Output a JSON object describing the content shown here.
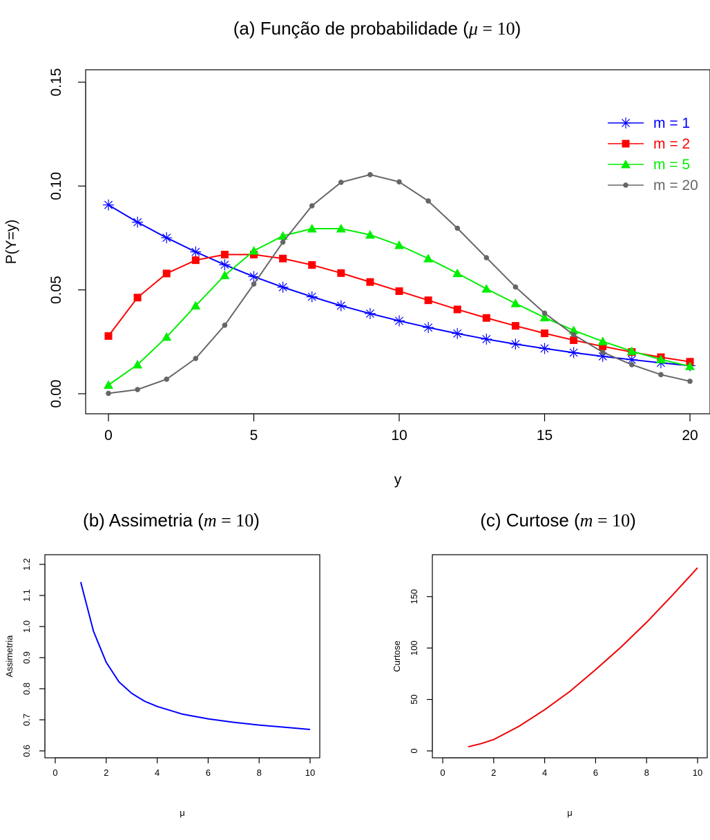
{
  "chart_data": [
    {
      "type": "line",
      "title": "(a) Função de probabilidade (μ = 10)",
      "title_parts": {
        "text": "(a) Função de probabilidade (",
        "symbol": "μ",
        "eq": " = ",
        "value": "10",
        "close": ")"
      },
      "xlabel": "y",
      "ylabel": "P(Y=y)",
      "xlim": [
        0,
        20
      ],
      "ylim": [
        0,
        0.15
      ],
      "x_ticks": [
        0,
        5,
        10,
        15,
        20
      ],
      "x_tick_labels": [
        "0",
        "5",
        "10",
        "15",
        "20"
      ],
      "y_ticks": [
        0,
        0.05,
        0.1,
        0.15
      ],
      "y_tick_labels": [
        "0.00",
        "0.05",
        "0.10",
        "0.15"
      ],
      "grid": false,
      "legend_position": "top-right",
      "x": [
        0,
        1,
        2,
        3,
        4,
        5,
        6,
        7,
        8,
        9,
        10,
        11,
        12,
        13,
        14,
        15,
        16,
        17,
        18,
        19,
        20
      ],
      "series": [
        {
          "name": "m = 1",
          "color": "#0000ff",
          "marker": "asterisk",
          "values": [
            0.0909,
            0.0826,
            0.0751,
            0.0683,
            0.0621,
            0.0564,
            0.0513,
            0.0467,
            0.0424,
            0.0386,
            0.0351,
            0.0319,
            0.029,
            0.0263,
            0.0239,
            0.0218,
            0.0198,
            0.018,
            0.0164,
            0.0149,
            0.0135
          ]
        },
        {
          "name": "m = 2",
          "color": "#ff0000",
          "marker": "square",
          "values": [
            0.0278,
            0.0463,
            0.0579,
            0.0643,
            0.067,
            0.067,
            0.0651,
            0.062,
            0.0581,
            0.0538,
            0.0494,
            0.045,
            0.0406,
            0.0365,
            0.0327,
            0.0291,
            0.0258,
            0.0228,
            0.0201,
            0.0176,
            0.0154
          ]
        },
        {
          "name": "m = 5",
          "color": "#00ee00",
          "marker": "triangle",
          "values": [
            0.0042,
            0.014,
            0.0273,
            0.0424,
            0.057,
            0.0688,
            0.076,
            0.0795,
            0.0795,
            0.0765,
            0.0715,
            0.0651,
            0.058,
            0.0505,
            0.0435,
            0.0367,
            0.0305,
            0.0252,
            0.0205,
            0.0165,
            0.0132
          ]
        },
        {
          "name": "m = 20",
          "color": "#666666",
          "marker": "circle",
          "values": [
            0.0002,
            0.002,
            0.007,
            0.017,
            0.033,
            0.0528,
            0.073,
            0.0905,
            0.1018,
            0.1055,
            0.102,
            0.0928,
            0.0797,
            0.0655,
            0.0514,
            0.0388,
            0.0284,
            0.02,
            0.014,
            0.0092,
            0.006
          ]
        }
      ]
    },
    {
      "type": "line",
      "title": "(b) Assimetria (m = 10)",
      "title_parts": {
        "text": "(b) Assimetria (",
        "symbol": "m",
        "eq": " = ",
        "value": "10",
        "close": ")"
      },
      "xlabel": "μ",
      "ylabel": "Assimetria",
      "xlim": [
        0,
        10
      ],
      "ylim": [
        0.6,
        1.2
      ],
      "x_ticks": [
        0,
        2,
        4,
        6,
        8,
        10
      ],
      "x_tick_labels": [
        "0",
        "2",
        "4",
        "6",
        "8",
        "10"
      ],
      "y_ticks": [
        0.6,
        0.7,
        0.8,
        0.9,
        1.0,
        1.1,
        1.2
      ],
      "y_tick_labels": [
        "0.6",
        "0.7",
        "0.8",
        "0.9",
        "1.0",
        "1.1",
        "1.2"
      ],
      "grid": false,
      "color": "#0000ff",
      "x": [
        1,
        1.5,
        2,
        2.5,
        3,
        3.5,
        4,
        5,
        6,
        7,
        8,
        9,
        10
      ],
      "values": [
        1.143,
        0.985,
        0.885,
        0.822,
        0.785,
        0.76,
        0.743,
        0.718,
        0.703,
        0.692,
        0.683,
        0.676,
        0.669
      ]
    },
    {
      "type": "line",
      "title": "(c) Curtose (m = 10)",
      "title_parts": {
        "text": "(c) Curtose (",
        "symbol": "m",
        "eq": " = ",
        "value": "10",
        "close": ")"
      },
      "xlabel": "μ",
      "ylabel": "Curtose",
      "xlim": [
        0,
        10
      ],
      "ylim": [
        0,
        180
      ],
      "x_ticks": [
        0,
        2,
        4,
        6,
        8,
        10
      ],
      "x_tick_labels": [
        "0",
        "2",
        "4",
        "6",
        "8",
        "10"
      ],
      "y_ticks": [
        0,
        50,
        100,
        150
      ],
      "y_tick_labels": [
        "0",
        "50",
        "100",
        "150"
      ],
      "grid": false,
      "color": "#ee0000",
      "x": [
        1,
        1.5,
        2,
        3,
        4,
        5,
        6,
        7,
        8,
        9,
        10
      ],
      "values": [
        4,
        7,
        11,
        24,
        40,
        58,
        79,
        101,
        125,
        151,
        178
      ]
    }
  ]
}
